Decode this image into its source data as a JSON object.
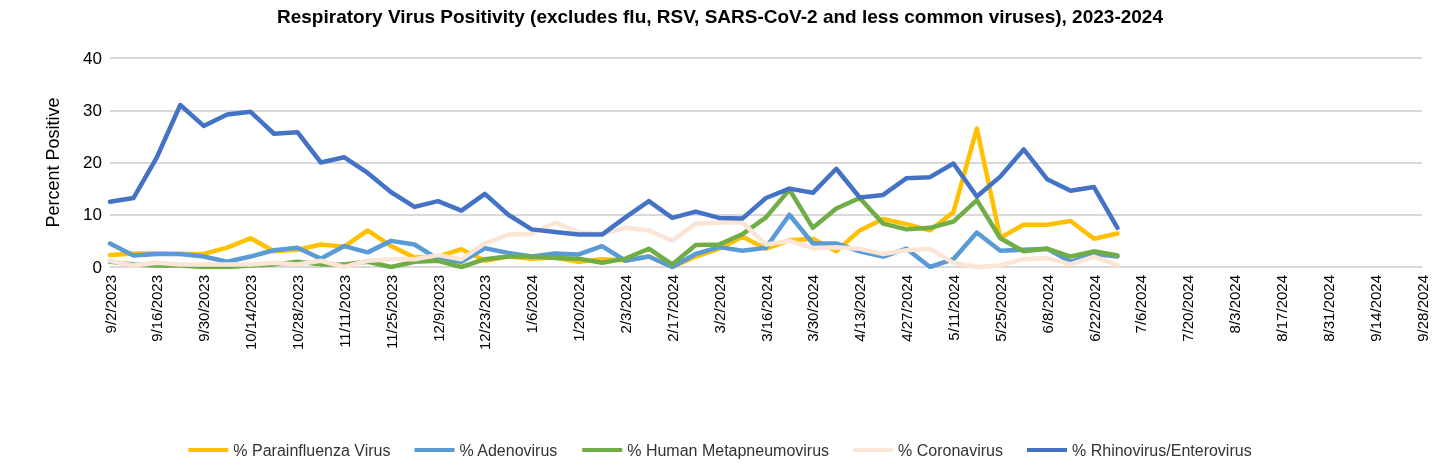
{
  "chart_data": {
    "type": "line",
    "title": "Respiratory Virus Positivity (excludes flu, RSV, SARS-CoV-2 and less common viruses), 2023-2024",
    "ylabel": "Percent Positive",
    "categories": [
      "9/2/2023",
      null,
      "9/16/2023",
      null,
      "9/30/2023",
      null,
      "10/14/2023",
      null,
      "10/28/2023",
      null,
      "11/11/2023",
      null,
      "11/25/2023",
      null,
      "12/9/2023",
      null,
      "12/23/2023",
      null,
      "1/6/2024",
      null,
      "1/20/2024",
      null,
      "2/3/2024",
      null,
      "2/17/2024",
      null,
      "3/2/2024",
      null,
      "3/16/2024",
      null,
      "3/30/2024",
      null,
      "4/13/2024",
      null,
      "4/27/2024",
      null,
      "5/11/2024",
      null,
      "5/25/2024",
      null,
      "6/8/2024",
      null,
      "6/22/2024",
      null,
      "7/6/2024",
      null,
      "7/20/2024",
      null,
      "8/3/2024",
      null,
      "8/17/2024",
      null,
      "8/31/2024",
      null,
      "9/14/2024",
      null,
      "9/28/2024"
    ],
    "series": [
      {
        "name": "% Parainfluenza Virus",
        "color": "#ffc000",
        "values": [
          2.3,
          2.6,
          2.6,
          2.5,
          2.5,
          3.7,
          5.5,
          3.0,
          3.3,
          4.3,
          3.9,
          7.0,
          4.0,
          1.8,
          2.0,
          3.4,
          1.2,
          2.0,
          1.6,
          1.8,
          1.0,
          1.5,
          1.3,
          2.0,
          0,
          2.0,
          3.5,
          5.8,
          3.5,
          5.1,
          5.4,
          3.0,
          7.0,
          9.2,
          8.2,
          7.0,
          10.5,
          26.5,
          5.6,
          8.1,
          8.1,
          8.8,
          5.4,
          6.4,
          null,
          null,
          null,
          null,
          null,
          null,
          null,
          null,
          null,
          null,
          null,
          null,
          null
        ]
      },
      {
        "name": "% Adenovirus",
        "color": "#5b9bd5",
        "values": [
          4.5,
          2.2,
          2.5,
          2.5,
          2.0,
          1.0,
          2.0,
          3.2,
          3.7,
          1.6,
          4.0,
          2.8,
          5.0,
          4.3,
          1.5,
          1.0,
          3.6,
          2.7,
          2.0,
          2.6,
          2.4,
          4.0,
          1.2,
          2.0,
          0,
          2.5,
          3.8,
          3.1,
          3.7,
          10.0,
          4.5,
          4.5,
          3.0,
          2.0,
          3.5,
          0,
          1.5,
          6.6,
          3.1,
          3.3,
          3.5,
          1.0,
          2.5,
          2.0,
          null,
          null,
          null,
          null,
          null,
          null,
          null,
          null,
          null,
          null,
          null,
          null,
          null
        ]
      },
      {
        "name": "% Human Metapneumovirus",
        "color": "#70ad47",
        "values": [
          1.0,
          0.5,
          0.3,
          0.3,
          0,
          0,
          0.3,
          0.5,
          1.0,
          0.5,
          0.5,
          1.0,
          0,
          1.0,
          1.2,
          0,
          1.5,
          2.0,
          2.0,
          1.7,
          1.6,
          0.8,
          1.6,
          3.5,
          0.5,
          4.2,
          4.3,
          6.3,
          9.5,
          14.8,
          7.5,
          11.2,
          13.2,
          8.3,
          7.2,
          7.5,
          8.7,
          12.8,
          5.5,
          3.0,
          3.5,
          2.0,
          3.0,
          2.2,
          null,
          null,
          null,
          null,
          null,
          null,
          null,
          null,
          null,
          null,
          null,
          null,
          null
        ]
      },
      {
        "name": "% Coronavirus",
        "color": "#fbe5d6",
        "values": [
          1.2,
          0.3,
          0.8,
          0.5,
          0.5,
          0.5,
          0.5,
          0.8,
          0.5,
          1.2,
          0,
          1.2,
          1.5,
          1.5,
          2.3,
          1.5,
          4.5,
          6.2,
          6.3,
          8.5,
          6.7,
          6.3,
          7.5,
          7.0,
          5.0,
          8.3,
          8.5,
          8.5,
          4.3,
          5.0,
          3.6,
          3.8,
          3.5,
          2.5,
          3.2,
          3.5,
          0.8,
          0,
          0.3,
          1.5,
          1.7,
          0.5,
          2.0,
          0.3,
          null,
          null,
          null,
          null,
          null,
          null,
          null,
          null,
          null,
          null,
          null,
          null,
          null
        ]
      },
      {
        "name": "% Rhinovirus/Enterovirus",
        "color": "#4472c4",
        "values": [
          12.5,
          13.2,
          21,
          31,
          27,
          29.2,
          29.7,
          25.5,
          25.8,
          20,
          21,
          18,
          14.3,
          11.5,
          12.6,
          10.8,
          14,
          10,
          7.2,
          6.7,
          6.2,
          6.2,
          9.5,
          12.6,
          9.4,
          10.6,
          9.4,
          9.3,
          13.2,
          15,
          14.2,
          18.8,
          13.3,
          13.8,
          17,
          17.2,
          19.8,
          13.5,
          17.3,
          22.5,
          16.8,
          14.6,
          15.3,
          7.5,
          null,
          null,
          null,
          null,
          null,
          null,
          null,
          null,
          null,
          null,
          null,
          null,
          null
        ]
      }
    ],
    "ylim": [
      0,
      40
    ],
    "yticks": [
      0,
      10,
      20,
      30,
      40
    ],
    "grid": "y",
    "legend": "bottom",
    "marker": "none",
    "line_style": "solid"
  }
}
